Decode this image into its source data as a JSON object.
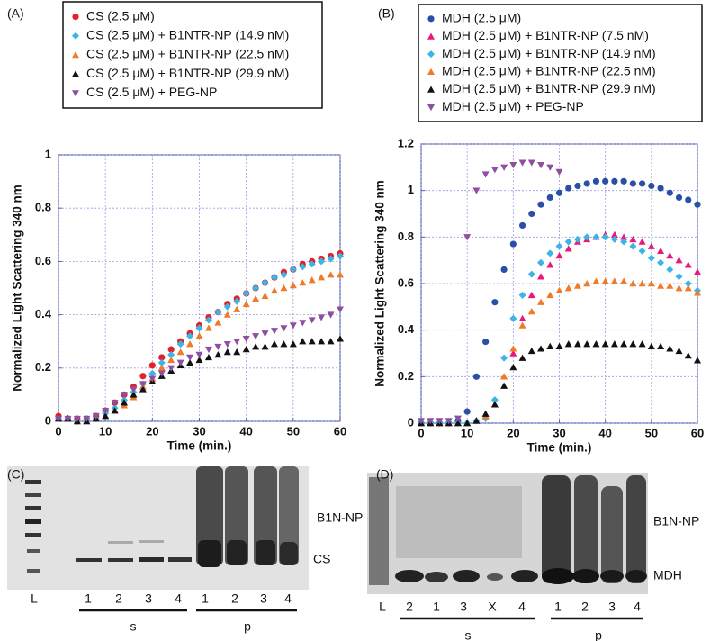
{
  "chart_data": [
    {
      "type": "scatter",
      "panel_label": "(A)",
      "x_label": "Time (min.)",
      "y_label": "Normalized Light Scattering 340 nm",
      "x": [
        0,
        2,
        4,
        6,
        8,
        10,
        12,
        14,
        16,
        18,
        20,
        22,
        24,
        26,
        28,
        30,
        32,
        34,
        36,
        38,
        40,
        42,
        44,
        46,
        48,
        50,
        52,
        54,
        56,
        58,
        60
      ],
      "xlim": [
        0,
        60
      ],
      "xticks": [
        0,
        10,
        20,
        30,
        40,
        50,
        60
      ],
      "ylim": [
        0,
        1
      ],
      "yticks": [
        0,
        0.2,
        0.4,
        0.6,
        0.8,
        1
      ],
      "grid": true,
      "legend": "top",
      "series": [
        {
          "name": "CS (2.5 μM)",
          "color": "#e3212b",
          "marker": "circle",
          "values": [
            0.02,
            0.01,
            0.01,
            0.01,
            0.02,
            0.04,
            0.07,
            0.1,
            0.13,
            0.17,
            0.21,
            0.24,
            0.27,
            0.3,
            0.33,
            0.36,
            0.39,
            0.41,
            0.44,
            0.46,
            0.48,
            0.5,
            0.52,
            0.54,
            0.56,
            0.57,
            0.59,
            0.6,
            0.61,
            0.62,
            0.63
          ]
        },
        {
          "name": "CS (2.5 μM) + B1NTR-NP (14.9 nM)",
          "color": "#3cb4e5",
          "marker": "diamond",
          "values": [
            0.01,
            0.01,
            0.0,
            0.01,
            0.01,
            0.03,
            0.05,
            0.08,
            0.11,
            0.14,
            0.18,
            0.22,
            0.25,
            0.29,
            0.32,
            0.35,
            0.38,
            0.41,
            0.43,
            0.45,
            0.48,
            0.5,
            0.52,
            0.54,
            0.55,
            0.57,
            0.58,
            0.59,
            0.6,
            0.61,
            0.62
          ]
        },
        {
          "name": "CS (2.5 μM) + B1NTR-NP (22.5 nM)",
          "color": "#f07a28",
          "marker": "triangle",
          "values": [
            0.01,
            0.01,
            0.0,
            0.0,
            0.01,
            0.02,
            0.04,
            0.06,
            0.09,
            0.13,
            0.16,
            0.2,
            0.23,
            0.26,
            0.29,
            0.32,
            0.35,
            0.37,
            0.4,
            0.42,
            0.44,
            0.46,
            0.47,
            0.49,
            0.5,
            0.51,
            0.52,
            0.53,
            0.54,
            0.55,
            0.55
          ]
        },
        {
          "name": "CS (2.5 μM) + B1NTR-NP (29.9 nM)",
          "color": "#111111",
          "marker": "triangle",
          "values": [
            0.01,
            0.01,
            0.0,
            0.0,
            0.01,
            0.02,
            0.04,
            0.07,
            0.1,
            0.12,
            0.15,
            0.17,
            0.19,
            0.21,
            0.22,
            0.23,
            0.24,
            0.25,
            0.26,
            0.26,
            0.27,
            0.28,
            0.28,
            0.29,
            0.29,
            0.29,
            0.3,
            0.3,
            0.3,
            0.3,
            0.31
          ]
        },
        {
          "name": "CS (2.5 μM) + PEG-NP",
          "color": "#8e4fa1",
          "marker": "triangle-down",
          "values": [
            0.01,
            0.01,
            0.01,
            0.01,
            0.02,
            0.04,
            0.07,
            0.1,
            0.12,
            0.14,
            0.16,
            0.18,
            0.2,
            0.22,
            0.24,
            0.25,
            0.27,
            0.28,
            0.29,
            0.3,
            0.31,
            0.32,
            0.33,
            0.34,
            0.35,
            0.36,
            0.37,
            0.38,
            0.39,
            0.4,
            0.42
          ]
        }
      ]
    },
    {
      "type": "scatter",
      "panel_label": "(B)",
      "x_label": "Time (min.)",
      "y_label": "Normalized Light Scattering 340 nm",
      "x": [
        0,
        2,
        4,
        6,
        8,
        10,
        12,
        14,
        16,
        18,
        20,
        22,
        24,
        26,
        28,
        30,
        32,
        34,
        36,
        38,
        40,
        42,
        44,
        46,
        48,
        50,
        52,
        54,
        56,
        58,
        60
      ],
      "xlim": [
        0,
        60
      ],
      "xticks": [
        0,
        10,
        20,
        30,
        40,
        50,
        60
      ],
      "ylim": [
        0,
        1.2
      ],
      "yticks": [
        0,
        0.2,
        0.4,
        0.6,
        0.8,
        1,
        1.2
      ],
      "grid": true,
      "legend": "top",
      "series": [
        {
          "name": "MDH (2.5 μM)",
          "color": "#2a4fa8",
          "marker": "circle",
          "values": [
            0,
            0,
            0,
            0,
            0.01,
            0.05,
            0.2,
            0.35,
            0.52,
            0.66,
            0.77,
            0.85,
            0.9,
            0.94,
            0.97,
            0.99,
            1.01,
            1.02,
            1.03,
            1.04,
            1.04,
            1.04,
            1.04,
            1.03,
            1.03,
            1.02,
            1.01,
            0.99,
            0.97,
            0.96,
            0.94
          ]
        },
        {
          "name": "MDH (2.5 μM) + B1NTR-NP (7.5 nM)",
          "color": "#e8197e",
          "marker": "triangle",
          "values": [
            0,
            0,
            0,
            0,
            0,
            0,
            0.01,
            0.03,
            0.08,
            0.2,
            0.3,
            0.45,
            0.55,
            0.63,
            0.68,
            0.72,
            0.75,
            0.78,
            0.79,
            0.8,
            0.81,
            0.81,
            0.8,
            0.79,
            0.78,
            0.76,
            0.74,
            0.72,
            0.7,
            0.68,
            0.65
          ]
        },
        {
          "name": "MDH (2.5 μM) + B1NTR-NP (14.9 nM)",
          "color": "#3cb4e5",
          "marker": "diamond",
          "values": [
            0,
            0,
            0,
            0,
            0,
            0,
            0.01,
            0.02,
            0.1,
            0.28,
            0.45,
            0.55,
            0.64,
            0.69,
            0.73,
            0.76,
            0.78,
            0.79,
            0.8,
            0.8,
            0.8,
            0.79,
            0.78,
            0.76,
            0.74,
            0.71,
            0.69,
            0.66,
            0.63,
            0.6,
            0.57
          ]
        },
        {
          "name": "MDH (2.5 μM) + B1NTR-NP (22.5 nM)",
          "color": "#f07a28",
          "marker": "triangle",
          "values": [
            0,
            0,
            0,
            0,
            0,
            0,
            0.01,
            0.03,
            0.08,
            0.2,
            0.32,
            0.42,
            0.48,
            0.52,
            0.55,
            0.57,
            0.58,
            0.59,
            0.6,
            0.61,
            0.61,
            0.61,
            0.61,
            0.6,
            0.6,
            0.6,
            0.59,
            0.59,
            0.58,
            0.58,
            0.56
          ]
        },
        {
          "name": "MDH (2.5 μM) + B1NTR-NP (29.9 nM)",
          "color": "#111111",
          "marker": "triangle",
          "values": [
            0,
            0,
            0,
            0,
            0,
            0,
            0.01,
            0.04,
            0.08,
            0.16,
            0.24,
            0.28,
            0.31,
            0.32,
            0.33,
            0.33,
            0.34,
            0.34,
            0.34,
            0.34,
            0.34,
            0.34,
            0.34,
            0.34,
            0.34,
            0.33,
            0.33,
            0.32,
            0.31,
            0.29,
            0.27
          ]
        },
        {
          "name": "MDH (2.5 μM) + PEG-NP",
          "color": "#8e4fa1",
          "marker": "triangle-down",
          "values": [
            0.01,
            0.01,
            0.01,
            0.01,
            0.02,
            0.8,
            1.0,
            1.07,
            1.09,
            1.1,
            1.11,
            1.12,
            1.12,
            1.11,
            1.1,
            1.08,
            null,
            null,
            null,
            null,
            null,
            null,
            null,
            null,
            null,
            null,
            null,
            null,
            null,
            null,
            null
          ]
        }
      ]
    }
  ],
  "gels": [
    {
      "panel_label": "(C)",
      "band_labels": [
        "B1N-NP",
        "CS"
      ],
      "lane_labels": [
        "L",
        "1",
        "2",
        "3",
        "4",
        "1",
        "2",
        "3",
        "4"
      ],
      "groups": [
        "s",
        "p"
      ]
    },
    {
      "panel_label": "(D)",
      "band_labels": [
        "B1N-NP",
        "MDH"
      ],
      "lane_labels": [
        "L",
        "2",
        "1",
        "3",
        "X",
        "4",
        "1",
        "2",
        "3",
        "4"
      ],
      "groups": [
        "s",
        "p"
      ]
    }
  ]
}
